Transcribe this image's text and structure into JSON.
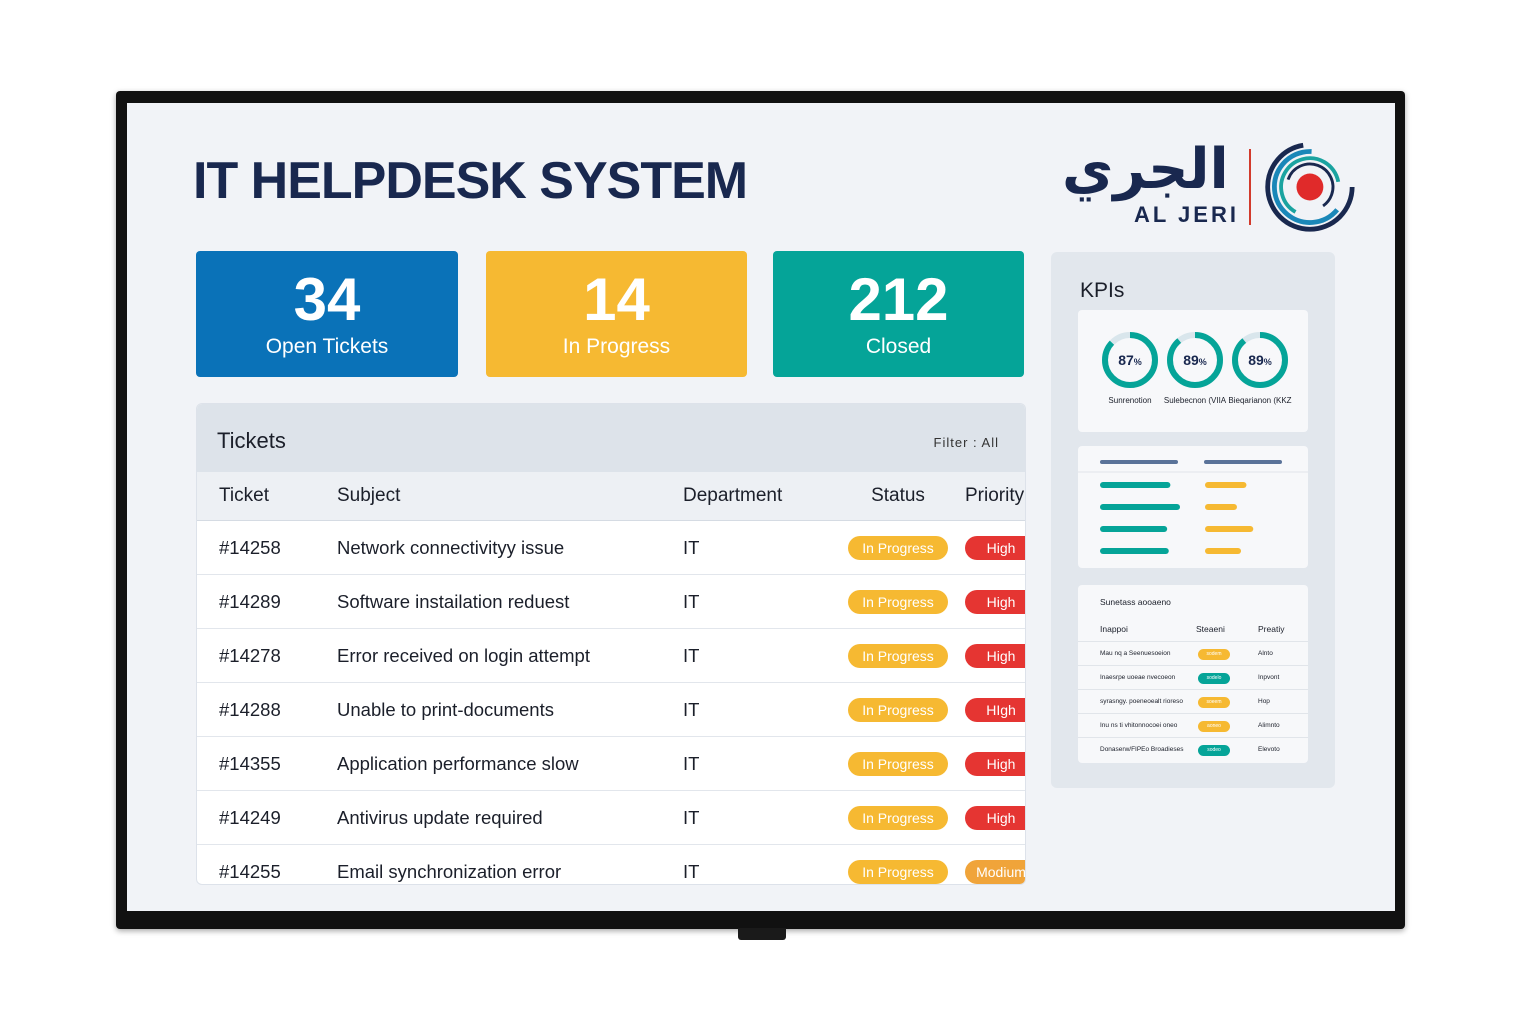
{
  "app": {
    "title": "IT HELPDESK SYSTEM"
  },
  "logo": {
    "arabic": "الجري",
    "english": "AL JERI"
  },
  "stats": [
    {
      "value": "34",
      "label": "Open Tickets",
      "color": "#0a72b8"
    },
    {
      "value": "14",
      "label": "In Progress",
      "color": "#f6b932"
    },
    {
      "value": "212",
      "label": "Closed",
      "color": "#05a498"
    }
  ],
  "tickets": {
    "title": "Tickets",
    "filter": "Filter : All",
    "columns": [
      "Ticket",
      "Subject",
      "Department",
      "Status",
      "Priority"
    ],
    "rows": [
      {
        "id": "#14258",
        "subject": "Network connectivityy issue",
        "department": "IT",
        "status": "In Progress",
        "priority": "High"
      },
      {
        "id": "#14289",
        "subject": "Software instailation reduest",
        "department": "IT",
        "status": "In Progress",
        "priority": "High"
      },
      {
        "id": "#14278",
        "subject": "Error received on login attempt",
        "department": "IT",
        "status": "In Progress",
        "priority": "High"
      },
      {
        "id": "#14288",
        "subject": "Unable to print-documents",
        "department": "IT",
        "status": "In Progress",
        "priority": "HIgh"
      },
      {
        "id": "#14355",
        "subject": "Application performance slow",
        "department": "IT",
        "status": "In Progress",
        "priority": "High"
      },
      {
        "id": "#14249",
        "subject": "Antivirus update required",
        "department": "IT",
        "status": "In Progress",
        "priority": "High"
      },
      {
        "id": "#14255",
        "subject": "Email synchronization error",
        "department": "IT",
        "status": "In Progress",
        "priority": "Modium"
      }
    ]
  },
  "colors": {
    "status": "#f6b932",
    "priority_high": "#e53532",
    "priority_medium": "#f0a43a",
    "teal": "#05a498",
    "amber": "#f6b932"
  },
  "kpis": {
    "title": "KPIs",
    "rings": [
      {
        "value": 87,
        "label_value": "87",
        "unit": "%",
        "label": "Sunrenotion"
      },
      {
        "value": 89,
        "label_value": "89",
        "unit": "%",
        "label": "Sulebecnon (VIIA"
      },
      {
        "value": 89,
        "label_value": "89",
        "unit": "%",
        "label": "Bieqarianon (KKZ"
      }
    ],
    "bars": {
      "left_fills": [
        0.88,
        1.0,
        0.84,
        0.86
      ],
      "right_fills": [
        0.61,
        0.47,
        0.71,
        0.53
      ]
    },
    "mini_table": {
      "title": "Sunetass aooaeno",
      "columns": [
        "Inappoi",
        "Steaeni",
        "Preatiy"
      ],
      "rows": [
        {
          "subject": "Mau nq a Seenuesoeion",
          "status": "sodem",
          "tone": "amber",
          "priority": "Alnto"
        },
        {
          "subject": "Inaesrpe uoeae nvecoeon",
          "status": "sodelo",
          "tone": "teal",
          "priority": "Inpvont"
        },
        {
          "subject": "syrasngy. poeneoealt rioreso",
          "status": "soeem",
          "tone": "amber",
          "priority": "Hop"
        },
        {
          "subject": "Inu ns ti vhitonnocoei oneo",
          "status": "aoneo",
          "tone": "amber",
          "priority": "Alimnto"
        },
        {
          "subject": "Donaserw/FIPEo Broadieses",
          "status": "sodeo",
          "tone": "teal",
          "priority": "Elevoto"
        }
      ]
    }
  }
}
